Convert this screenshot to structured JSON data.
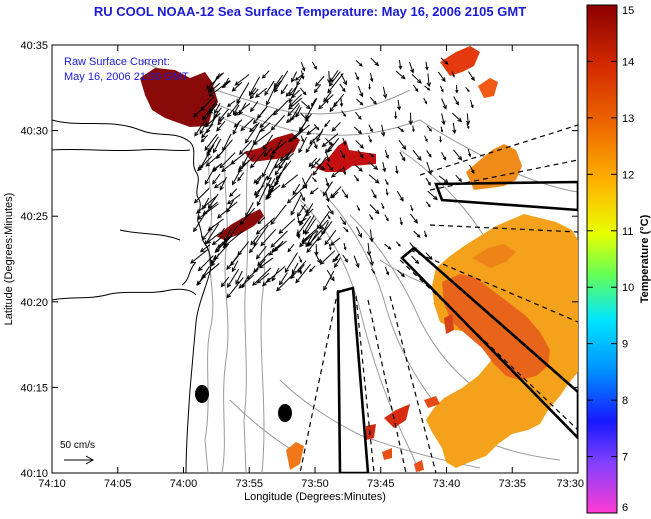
{
  "title": "RU COOL  NOAA-12  Sea Surface Temperature:  May 16, 2006 2105 GMT",
  "legend": {
    "line1": "Raw Surface Current:",
    "line2": "May 16, 2006 21:00 GMT"
  },
  "scale_arrow_label": "50 cm/s",
  "axes": {
    "xlabel": "Longitude (Degrees:Minutes)",
    "ylabel": "Latitude (Degrees:Minutes)",
    "x_ticks": [
      "74:10",
      "74:05",
      "74:00",
      "73:55",
      "73:50",
      "73:45",
      "73:40",
      "73:35",
      "73:30"
    ],
    "y_ticks": [
      "40:35",
      "40:30",
      "40:25",
      "40:20",
      "40:15",
      "40:10"
    ]
  },
  "colorbar": {
    "label": "Temperature (°C)",
    "min": 6,
    "max": 15,
    "ticks": [
      "15",
      "14",
      "13",
      "12",
      "11",
      "10",
      "9",
      "8",
      "7",
      "6"
    ]
  }
}
